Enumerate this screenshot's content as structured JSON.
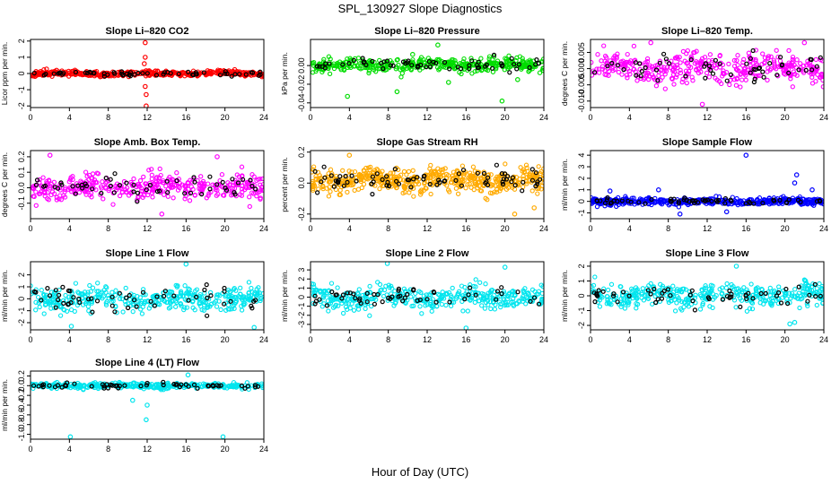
{
  "figure": {
    "title": "SPL_130927  Slope Diagnostics",
    "xlabel": "Hour of Day (UTC)"
  },
  "chart_data": [
    {
      "type": "scatter",
      "title": "Slope Li–820 CO2",
      "ylabel": "Licor ppm per min.",
      "color": "#ff0000",
      "seed": 11,
      "xlim": [
        0,
        24
      ],
      "ylim": [
        -2.1,
        2.1
      ],
      "xticks": [
        0,
        4,
        8,
        12,
        16,
        20,
        24
      ],
      "yticks": [
        -2,
        -1,
        0,
        1,
        2
      ],
      "ytick_labels": [
        "-2",
        "-1",
        "0",
        "1",
        "2"
      ],
      "center": 0.0,
      "spread": 0.15,
      "count": 420,
      "outliers": [
        [
          11.8,
          1.9
        ],
        [
          11.8,
          1.0
        ],
        [
          11.9,
          -1.3
        ],
        [
          11.9,
          -2.0
        ],
        [
          11.7,
          0.6
        ],
        [
          11.8,
          -0.8
        ]
      ]
    },
    {
      "type": "scatter",
      "title": "Slope Li–820 Pressure",
      "ylabel": "kPa per min.",
      "color": "#00dd00",
      "seed": 23,
      "xlim": [
        0,
        24
      ],
      "ylim": [
        -0.045,
        0.028
      ],
      "xticks": [
        0,
        4,
        8,
        12,
        16,
        20,
        24
      ],
      "yticks": [
        -0.04,
        -0.02,
        0.0
      ],
      "ytick_labels": [
        "-0.04",
        "-0.02",
        "0.00"
      ],
      "center": 0.001,
      "spread": 0.006,
      "count": 420,
      "outliers": [
        [
          3.8,
          -0.033
        ],
        [
          8.9,
          -0.028
        ],
        [
          13.1,
          0.022
        ],
        [
          14.2,
          -0.018
        ],
        [
          19.7,
          -0.038
        ],
        [
          21.3,
          -0.015
        ],
        [
          10.5,
          0.012
        ]
      ]
    },
    {
      "type": "scatter",
      "title": "Slope Li–820 Temp.",
      "ylabel": "degrees C per min.",
      "color": "#ff00ff",
      "seed": 37,
      "xlim": [
        0,
        24
      ],
      "ylim": [
        -0.012,
        0.009
      ],
      "xticks": [
        0,
        4,
        8,
        12,
        16,
        20,
        24
      ],
      "yticks": [
        -0.01,
        -0.005,
        0.0,
        0.005
      ],
      "ytick_labels": [
        "-0.010",
        "-0.005",
        "0.000",
        "0.005"
      ],
      "center": 0.0,
      "spread": 0.004,
      "count": 380,
      "outliers": [
        [
          11.5,
          -0.011
        ],
        [
          22.0,
          0.008
        ],
        [
          6.2,
          0.008
        ]
      ]
    },
    {
      "type": "scatter",
      "title": "Slope Amb. Box Temp.",
      "ylabel": "degrees C per min.",
      "color": "#ff00ff",
      "seed": 41,
      "xlim": [
        0,
        24
      ],
      "ylim": [
        -0.2,
        0.24
      ],
      "xticks": [
        0,
        4,
        8,
        12,
        16,
        20,
        24
      ],
      "yticks": [
        -0.1,
        0.0,
        0.1,
        0.2
      ],
      "ytick_labels": [
        "-0.1",
        "0.0",
        "0.1",
        "0.2"
      ],
      "center": 0.0,
      "spread": 0.075,
      "count": 380,
      "outliers": [
        [
          2.0,
          0.21
        ],
        [
          13.5,
          -0.17
        ],
        [
          19.2,
          0.2
        ]
      ]
    },
    {
      "type": "scatter",
      "title": "Slope Gas Stream RH",
      "ylabel": "percent per min.",
      "color": "#ffaa00",
      "seed": 53,
      "xlim": [
        0,
        24
      ],
      "ylim": [
        -0.23,
        0.21
      ],
      "xticks": [
        0,
        4,
        8,
        12,
        16,
        20,
        24
      ],
      "yticks": [
        -0.2,
        0.0,
        0.2
      ],
      "ytick_labels": [
        "-0.2",
        "0.0",
        "0.2"
      ],
      "center": 0.02,
      "spread": 0.07,
      "count": 520,
      "outliers": [
        [
          21.0,
          -0.2
        ],
        [
          23.0,
          -0.16
        ],
        [
          4.0,
          0.18
        ]
      ]
    },
    {
      "type": "scatter",
      "title": "Slope Sample Flow",
      "ylabel": "ml/min per min.",
      "color": "#0000ff",
      "seed": 67,
      "xlim": [
        0,
        24
      ],
      "ylim": [
        -1.5,
        4.4
      ],
      "xticks": [
        0,
        4,
        8,
        12,
        16,
        20,
        24
      ],
      "yticks": [
        -1,
        0,
        1,
        2,
        3,
        4
      ],
      "ytick_labels": [
        "-1",
        "0",
        "1",
        "2",
        "3",
        "4"
      ],
      "center": 0.0,
      "spread": 0.25,
      "count": 420,
      "outliers": [
        [
          16.0,
          4.0
        ],
        [
          21.2,
          2.3
        ],
        [
          21.0,
          1.6
        ],
        [
          7.0,
          1.0
        ],
        [
          2.0,
          0.9
        ],
        [
          14.0,
          -0.9
        ],
        [
          9.2,
          -1.1
        ],
        [
          22.8,
          1.0
        ]
      ]
    },
    {
      "type": "scatter",
      "title": "Slope Line 1 Flow",
      "ylabel": "ml/min per min.",
      "color": "#00e5ee",
      "seed": 71,
      "xlim": [
        0,
        24
      ],
      "ylim": [
        -2.6,
        3.1
      ],
      "xticks": [
        0,
        4,
        8,
        12,
        16,
        20,
        24
      ],
      "yticks": [
        -2,
        -1,
        0,
        1,
        2
      ],
      "ytick_labels": [
        "-2",
        "-1",
        "0",
        "1",
        "2"
      ],
      "center": 0.0,
      "spread": 0.9,
      "count": 380,
      "outliers": [
        [
          16.0,
          2.9
        ],
        [
          4.2,
          -2.3
        ],
        [
          23.0,
          -2.4
        ]
      ]
    },
    {
      "type": "scatter",
      "title": "Slope Line 2 Flow",
      "ylabel": "ml/min per min.",
      "color": "#00e5ee",
      "seed": 83,
      "xlim": [
        0,
        24
      ],
      "ylim": [
        -3.6,
        3.9
      ],
      "xticks": [
        0,
        4,
        8,
        12,
        16,
        20,
        24
      ],
      "yticks": [
        -3,
        -2,
        -1,
        0,
        1,
        2,
        3
      ],
      "ytick_labels": [
        "-3",
        "-2",
        "-1",
        "0",
        "1",
        "2",
        "3"
      ],
      "center": 0.0,
      "spread": 1.1,
      "count": 380,
      "outliers": [
        [
          7.9,
          3.7
        ],
        [
          16.0,
          -3.4
        ],
        [
          20.0,
          3.3
        ]
      ]
    },
    {
      "type": "scatter",
      "title": "Slope Line 3 Flow",
      "ylabel": "ml/min per min.",
      "color": "#00e5ee",
      "seed": 97,
      "xlim": [
        0,
        24
      ],
      "ylim": [
        -2.3,
        2.3
      ],
      "xticks": [
        0,
        4,
        8,
        12,
        16,
        20,
        24
      ],
      "yticks": [
        -2,
        -1,
        0,
        1,
        2
      ],
      "ytick_labels": [
        "-2",
        "-1",
        "0",
        "1",
        "2"
      ],
      "center": 0.0,
      "spread": 0.75,
      "count": 380,
      "outliers": [
        [
          20.5,
          -1.9
        ],
        [
          21.0,
          -1.8
        ],
        [
          15.0,
          2.0
        ]
      ]
    },
    {
      "type": "scatter",
      "title": "Slope Line 4 (LT) Flow",
      "ylabel": "ml/min per min.",
      "color": "#00e5ee",
      "seed": 101,
      "xlim": [
        0,
        24
      ],
      "ylim": [
        -1.1,
        0.3
      ],
      "xticks": [
        0,
        4,
        8,
        12,
        16,
        20,
        24
      ],
      "yticks": [
        -1.0,
        -0.8,
        -0.6,
        -0.4,
        -0.2,
        0.0,
        0.2
      ],
      "ytick_labels": [
        "-1.0",
        "-0.8",
        "-0.6",
        "-0.4",
        "-0.2",
        "0.0",
        "0.2"
      ],
      "center": 0.0,
      "spread": 0.05,
      "count": 380,
      "outliers": [
        [
          4.1,
          -1.05
        ],
        [
          19.8,
          -1.05
        ],
        [
          11.9,
          -0.7
        ],
        [
          12.0,
          -0.4
        ],
        [
          10.5,
          -0.3
        ],
        [
          16.2,
          0.22
        ]
      ]
    }
  ]
}
